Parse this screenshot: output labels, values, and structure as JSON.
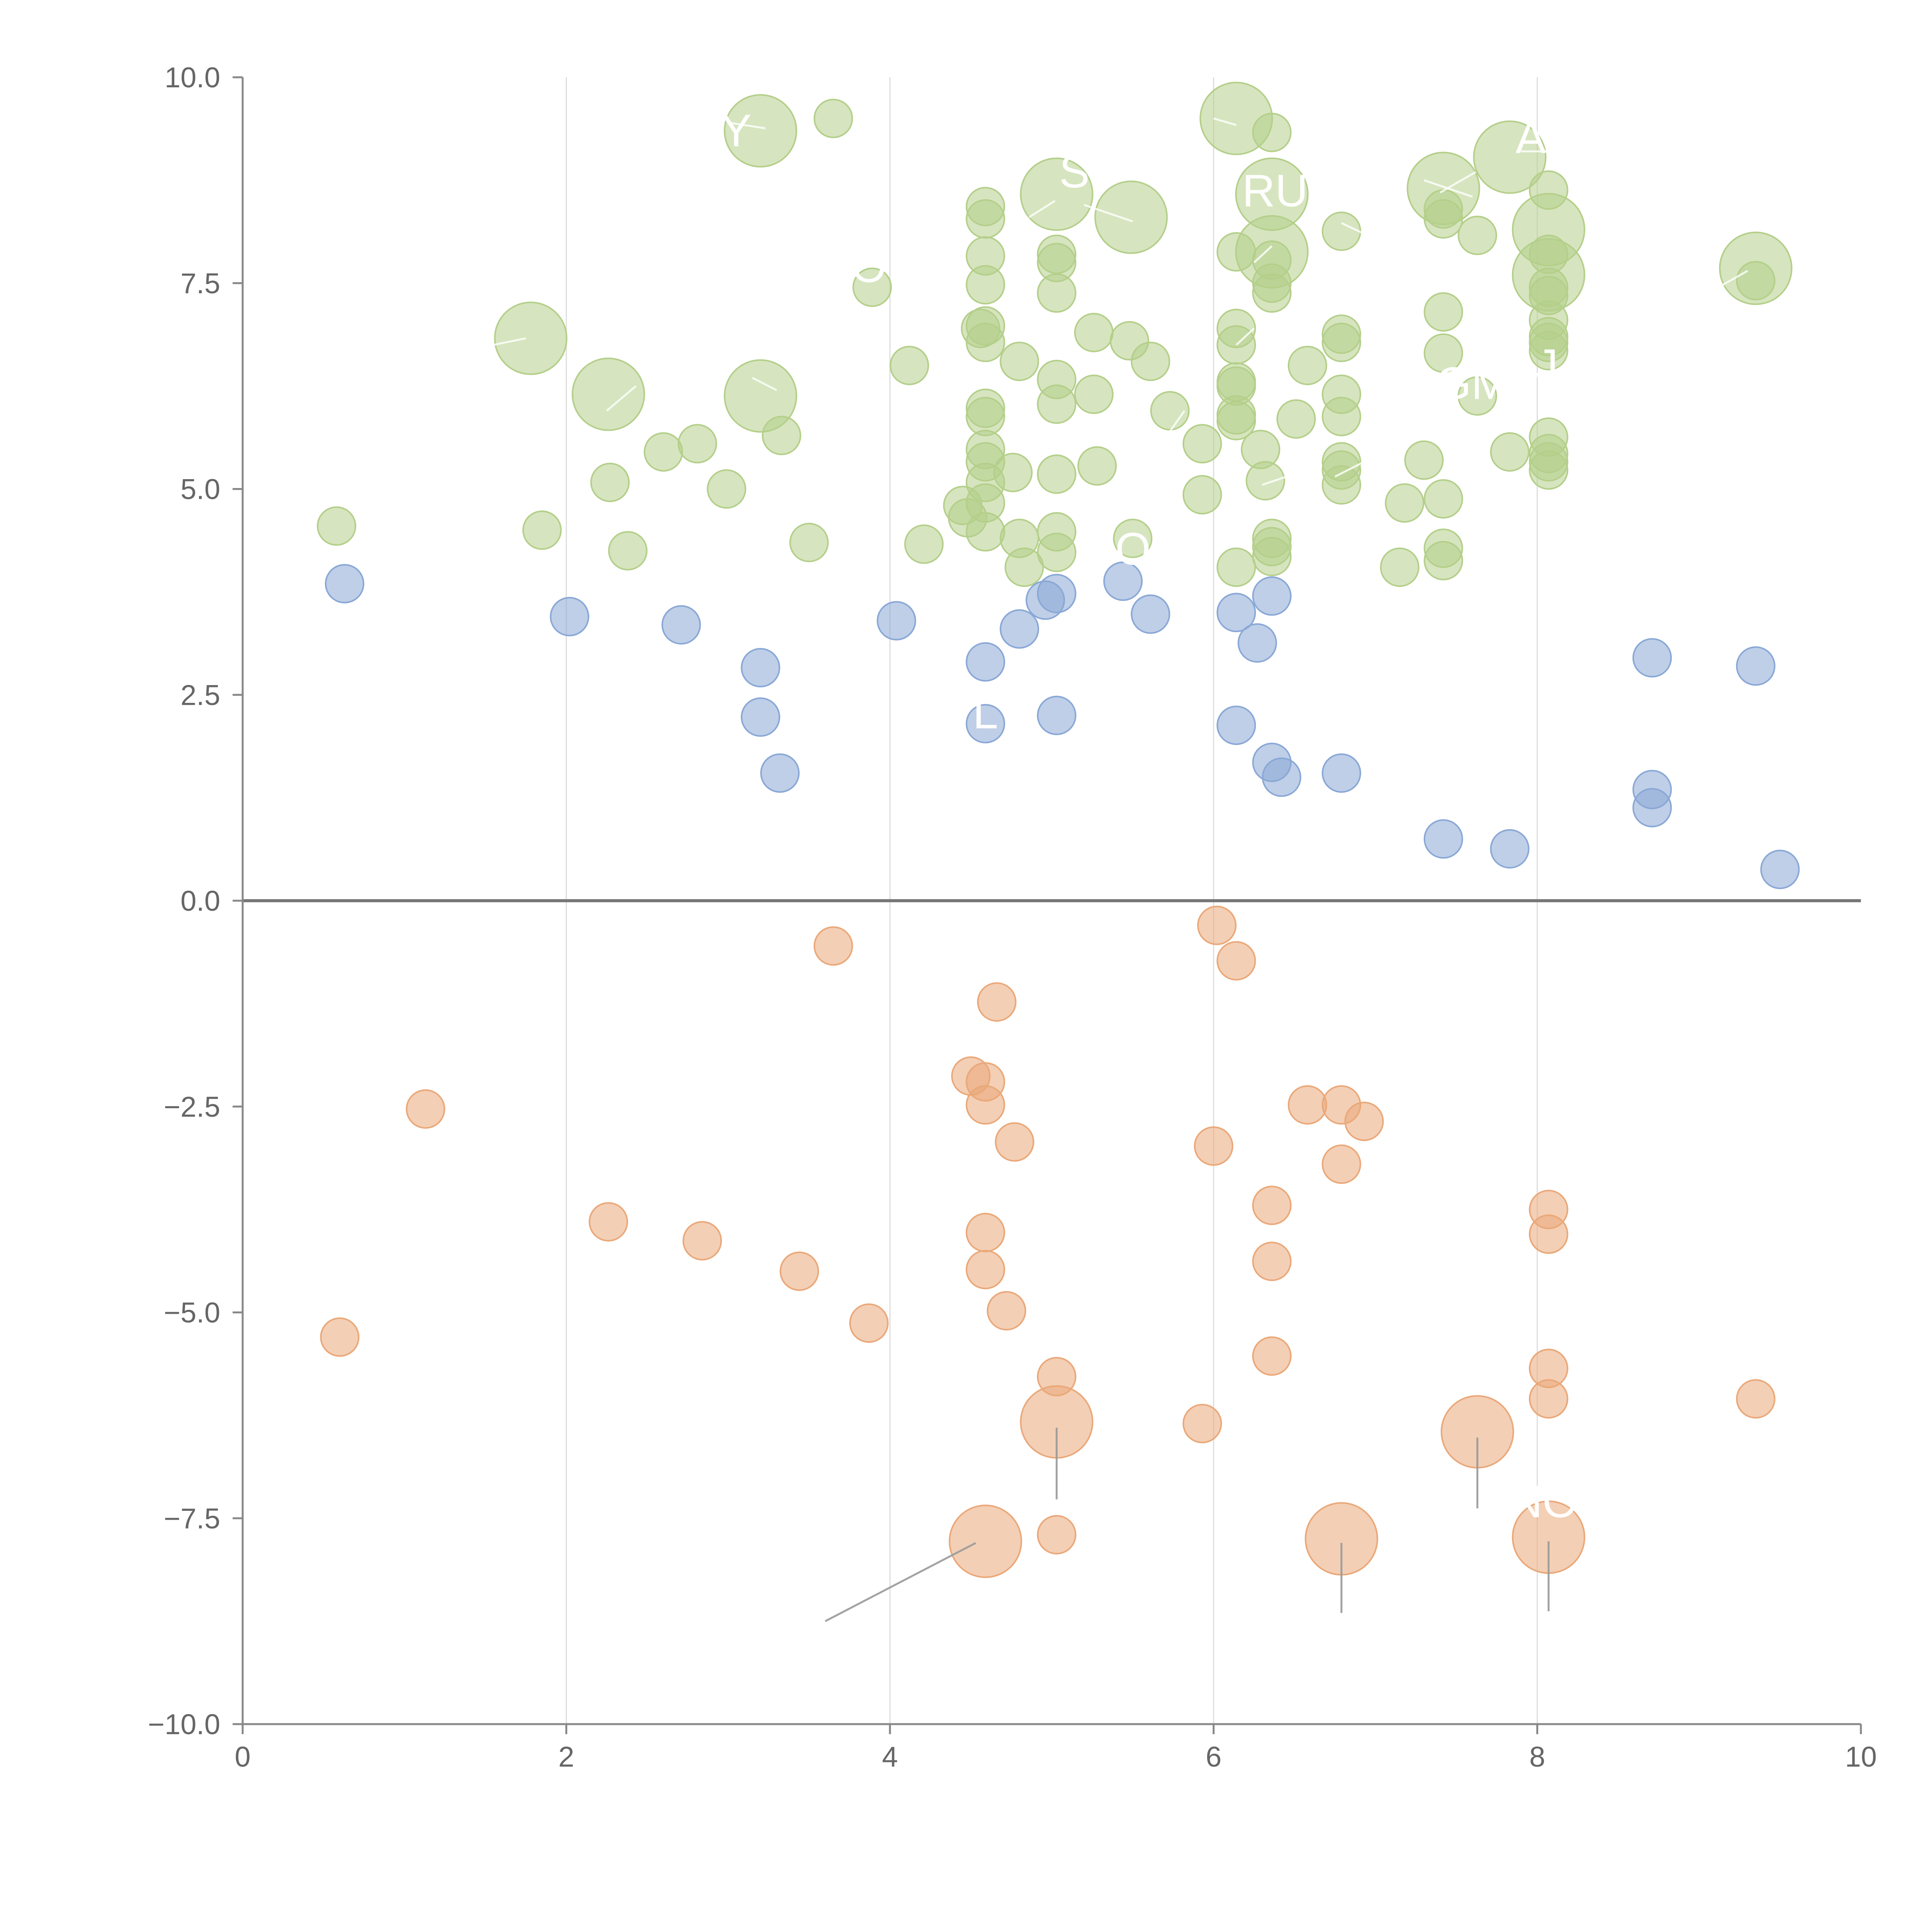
{
  "chart_data": {
    "type": "scatter",
    "title": "",
    "xlabel": "",
    "ylabel": "",
    "xlim": [
      0,
      10
    ],
    "ylim": [
      -10,
      10
    ],
    "x_ticks": [
      "0",
      "2",
      "4",
      "6",
      "8",
      "10"
    ],
    "y_ticks": [
      "10.0",
      "7.5",
      "5.0",
      "2.5",
      "0.0",
      "−2.5",
      "−5.0",
      "−7.5",
      "−10.0"
    ],
    "grid": "vertical lines at x = 2, 4, 6, 8",
    "zero_line": 0,
    "colors": {
      "high": "#b4cf8a",
      "mid": "#8aa8d6",
      "neg": "#eaa879",
      "axis": "#888888",
      "grid": "#dddddd",
      "zero": "#777777",
      "leader": "#999999"
    },
    "series": [
      {
        "name": "high",
        "color": "#b4cf8a",
        "points": [
          [
            0.58,
            4.55,
            1
          ],
          [
            1.85,
            4.5,
            1
          ],
          [
            2.38,
            4.25,
            1
          ],
          [
            2.27,
            5.08,
            1
          ],
          [
            2.6,
            5.45,
            1
          ],
          [
            2.81,
            5.55,
            1
          ],
          [
            2.99,
            5.0,
            1
          ],
          [
            3.33,
            5.65,
            1
          ],
          [
            3.5,
            4.35,
            1
          ],
          [
            3.65,
            9.5,
            1
          ],
          [
            3.89,
            7.45,
            1
          ],
          [
            4.12,
            6.5,
            1
          ],
          [
            4.21,
            4.33,
            1
          ],
          [
            4.48,
            4.65,
            1
          ],
          [
            4.56,
            6.95,
            1
          ],
          [
            4.59,
            8.43,
            1
          ],
          [
            4.59,
            8.28,
            1
          ],
          [
            4.59,
            7.83,
            1
          ],
          [
            4.59,
            7.48,
            1
          ],
          [
            4.59,
            6.98,
            1
          ],
          [
            4.59,
            6.78,
            1
          ],
          [
            4.59,
            5.98,
            1
          ],
          [
            4.59,
            5.88,
            1
          ],
          [
            4.59,
            5.48,
            1
          ],
          [
            4.59,
            5.33,
            1
          ],
          [
            4.59,
            5.08,
            1
          ],
          [
            4.59,
            4.83,
            1
          ],
          [
            4.59,
            4.48,
            1
          ],
          [
            4.45,
            4.8,
            1
          ],
          [
            4.76,
            5.2,
            1
          ],
          [
            4.8,
            6.55,
            1
          ],
          [
            4.8,
            4.4,
            1
          ],
          [
            4.83,
            4.05,
            1
          ],
          [
            5.03,
            7.85,
            1
          ],
          [
            5.03,
            7.75,
            1
          ],
          [
            5.03,
            7.38,
            1
          ],
          [
            5.03,
            6.33,
            1
          ],
          [
            5.03,
            6.03,
            1
          ],
          [
            5.03,
            5.18,
            1
          ],
          [
            5.03,
            4.48,
            1
          ],
          [
            5.03,
            4.23,
            1
          ],
          [
            5.26,
            6.9,
            1
          ],
          [
            5.26,
            6.15,
            1
          ],
          [
            5.28,
            5.28,
            1
          ],
          [
            5.48,
            6.8,
            1
          ],
          [
            5.61,
            6.55,
            1
          ],
          [
            5.5,
            4.4,
            1
          ],
          [
            5.73,
            5.95,
            1
          ],
          [
            5.93,
            5.55,
            1
          ],
          [
            5.93,
            4.93,
            1
          ],
          [
            6.14,
            7.88,
            1
          ],
          [
            6.14,
            6.95,
            1
          ],
          [
            6.14,
            6.75,
            1
          ],
          [
            6.14,
            6.3,
            1
          ],
          [
            6.14,
            6.25,
            1
          ],
          [
            6.14,
            5.9,
            1
          ],
          [
            6.14,
            5.83,
            1
          ],
          [
            6.14,
            4.05,
            1
          ],
          [
            6.29,
            5.48,
            1
          ],
          [
            6.32,
            5.1,
            1
          ],
          [
            6.36,
            9.33,
            1
          ],
          [
            6.36,
            7.78,
            1
          ],
          [
            6.36,
            7.5,
            1
          ],
          [
            6.36,
            7.38,
            1
          ],
          [
            6.36,
            4.4,
            1
          ],
          [
            6.36,
            4.3,
            1
          ],
          [
            6.36,
            4.18,
            1
          ],
          [
            6.51,
            5.85,
            1
          ],
          [
            6.58,
            6.5,
            1
          ],
          [
            6.79,
            8.13,
            1
          ],
          [
            6.79,
            6.88,
            1
          ],
          [
            6.79,
            6.78,
            1
          ],
          [
            6.79,
            6.15,
            1
          ],
          [
            6.79,
            5.88,
            1
          ],
          [
            6.79,
            5.33,
            1
          ],
          [
            6.79,
            5.23,
            1
          ],
          [
            6.79,
            5.05,
            1
          ],
          [
            7.15,
            4.05,
            1
          ],
          [
            7.18,
            4.83,
            1
          ],
          [
            7.3,
            5.35,
            1
          ],
          [
            7.42,
            8.4,
            1
          ],
          [
            7.42,
            8.28,
            1
          ],
          [
            7.42,
            7.15,
            1
          ],
          [
            7.42,
            6.65,
            1
          ],
          [
            7.42,
            4.88,
            1
          ],
          [
            7.42,
            4.28,
            1
          ],
          [
            7.42,
            4.13,
            1
          ],
          [
            7.63,
            8.08,
            1
          ],
          [
            7.63,
            6.13,
            1
          ],
          [
            7.83,
            5.45,
            1
          ],
          [
            8.07,
            8.63,
            1
          ],
          [
            8.07,
            7.85,
            1
          ],
          [
            8.07,
            7.45,
            1
          ],
          [
            8.07,
            7.35,
            1
          ],
          [
            8.07,
            7.05,
            1
          ],
          [
            8.07,
            6.85,
            1
          ],
          [
            8.07,
            6.78,
            1
          ],
          [
            8.07,
            6.68,
            1
          ],
          [
            8.07,
            5.63,
            1
          ],
          [
            8.07,
            5.43,
            1
          ],
          [
            8.07,
            5.33,
            1
          ],
          [
            8.07,
            5.23,
            1
          ],
          [
            9.35,
            7.53,
            1
          ],
          [
            3.2,
            9.35,
            2
          ],
          [
            1.78,
            6.83,
            2
          ],
          [
            2.26,
            6.15,
            2
          ],
          [
            3.2,
            6.13,
            2
          ],
          [
            5.03,
            8.58,
            2
          ],
          [
            5.49,
            8.3,
            2
          ],
          [
            6.14,
            9.5,
            2
          ],
          [
            6.36,
            8.58,
            2
          ],
          [
            6.36,
            7.88,
            2
          ],
          [
            7.42,
            8.65,
            2
          ],
          [
            7.83,
            9.03,
            2
          ],
          [
            8.07,
            8.15,
            2
          ],
          [
            8.07,
            7.6,
            2
          ],
          [
            9.35,
            7.68,
            2
          ]
        ]
      },
      {
        "name": "mid",
        "color": "#8aa8d6",
        "points": [
          [
            0.63,
            3.85,
            1
          ],
          [
            2.02,
            3.45,
            1
          ],
          [
            2.71,
            3.35,
            1
          ],
          [
            3.2,
            2.83,
            1
          ],
          [
            3.2,
            2.23,
            1
          ],
          [
            3.32,
            1.55,
            1
          ],
          [
            4.04,
            3.4,
            1
          ],
          [
            4.59,
            2.9,
            1
          ],
          [
            4.59,
            2.15,
            1
          ],
          [
            4.8,
            3.3,
            1
          ],
          [
            4.96,
            3.65,
            1
          ],
          [
            5.03,
            3.73,
            1
          ],
          [
            5.03,
            2.25,
            1
          ],
          [
            5.44,
            3.88,
            1
          ],
          [
            5.61,
            3.48,
            1
          ],
          [
            6.14,
            3.5,
            1
          ],
          [
            6.14,
            2.13,
            1
          ],
          [
            6.27,
            3.13,
            1
          ],
          [
            6.36,
            3.7,
            1
          ],
          [
            6.36,
            1.68,
            1
          ],
          [
            6.42,
            1.5,
            1
          ],
          [
            6.79,
            1.55,
            1
          ],
          [
            7.42,
            0.75,
            1
          ],
          [
            7.83,
            0.63,
            1
          ],
          [
            8.71,
            2.95,
            1
          ],
          [
            8.71,
            1.35,
            1
          ],
          [
            8.71,
            1.13,
            1
          ],
          [
            9.35,
            2.85,
            1
          ],
          [
            9.5,
            0.38,
            1
          ]
        ]
      },
      {
        "name": "neg",
        "color": "#eaa879",
        "points": [
          [
            0.6,
            -5.3,
            1
          ],
          [
            1.13,
            -2.53,
            1
          ],
          [
            2.26,
            -3.9,
            1
          ],
          [
            2.84,
            -4.13,
            1
          ],
          [
            3.44,
            -4.5,
            1
          ],
          [
            3.65,
            -0.55,
            1
          ],
          [
            3.87,
            -5.13,
            1
          ],
          [
            4.5,
            -2.13,
            1
          ],
          [
            4.59,
            -2.2,
            1
          ],
          [
            4.59,
            -2.48,
            1
          ],
          [
            4.59,
            -4.03,
            1
          ],
          [
            4.59,
            -4.48,
            1
          ],
          [
            4.66,
            -1.23,
            1
          ],
          [
            4.72,
            -4.98,
            1
          ],
          [
            4.77,
            -2.93,
            1
          ],
          [
            5.03,
            -5.78,
            1
          ],
          [
            5.03,
            -7.7,
            1
          ],
          [
            5.93,
            -6.35,
            1
          ],
          [
            6.0,
            -2.98,
            1
          ],
          [
            6.02,
            -0.3,
            1
          ],
          [
            6.14,
            -0.73,
            1
          ],
          [
            6.36,
            -3.7,
            1
          ],
          [
            6.36,
            -4.38,
            1
          ],
          [
            6.36,
            -5.53,
            1
          ],
          [
            6.58,
            -2.48,
            1
          ],
          [
            6.79,
            -2.48,
            1
          ],
          [
            6.79,
            -3.2,
            1
          ],
          [
            6.93,
            -2.68,
            1
          ],
          [
            8.07,
            -3.75,
            1
          ],
          [
            8.07,
            -4.05,
            1
          ],
          [
            8.07,
            -5.68,
            1
          ],
          [
            8.07,
            -6.05,
            1
          ],
          [
            9.35,
            -6.05,
            1
          ],
          [
            4.59,
            -7.78,
            2
          ],
          [
            5.03,
            -6.33,
            2
          ],
          [
            6.79,
            -7.75,
            2
          ],
          [
            7.63,
            -6.45,
            2
          ],
          [
            8.07,
            -7.73,
            2
          ]
        ]
      }
    ],
    "labels": [
      {
        "text": "Y",
        "x": 3.05,
        "y": 9.35,
        "fx": 3.05,
        "fy": 9.45,
        "tx": 3.15,
        "ty": 9.35
      },
      {
        "text": "S",
        "x": 5.14,
        "y": 8.85,
        "fx": 5.0,
        "fy": 8.55,
        "tx": 4.86,
        "ty": 8.3
      },
      {
        "text": "RU",
        "x": 6.38,
        "y": 8.62
      },
      {
        "text": "A",
        "x": 7.96,
        "y": 9.27
      },
      {
        "text": "O",
        "x": 3.87,
        "y": 7.7
      },
      {
        "text": "GM",
        "x": 7.6,
        "y": 6.28
      },
      {
        "text": "LJ",
        "x": 7.98,
        "y": 6.5
      },
      {
        "text": "DO",
        "x": 5.4,
        "y": 4.27,
        "fx": 5.2,
        "fy": 4.1,
        "tx": 4.85,
        "ty": 3.9
      },
      {
        "text": "L",
        "x": 4.59,
        "y": 2.28
      },
      {
        "text": "NO",
        "x": 8.04,
        "y": -7.3
      }
    ],
    "leader_lines": [
      [
        3.6,
        -8.75,
        4.53,
        -7.8
      ],
      [
        5.03,
        -7.27,
        5.03,
        -6.4
      ],
      [
        6.79,
        -8.65,
        6.79,
        -7.8
      ],
      [
        7.63,
        -7.38,
        7.63,
        -6.52
      ],
      [
        8.07,
        -8.63,
        8.07,
        -7.78
      ],
      [
        3.0,
        9.45,
        3.23,
        9.38
      ],
      [
        5.02,
        8.5,
        4.86,
        8.3
      ],
      [
        5.5,
        8.25,
        5.2,
        8.45
      ],
      [
        6.0,
        9.5,
        6.14,
        9.42
      ],
      [
        6.25,
        7.75,
        6.36,
        7.95
      ],
      [
        6.14,
        6.75,
        6.25,
        6.95
      ],
      [
        5.73,
        5.7,
        5.82,
        5.95
      ],
      [
        6.3,
        5.05,
        6.45,
        5.15
      ],
      [
        2.25,
        5.95,
        2.43,
        6.25
      ],
      [
        3.15,
        6.35,
        3.3,
        6.2
      ],
      [
        1.55,
        6.75,
        1.75,
        6.83
      ],
      [
        7.3,
        8.75,
        7.6,
        8.55
      ],
      [
        7.9,
        9.1,
        8.1,
        9.1
      ],
      [
        7.4,
        8.6,
        7.62,
        8.85
      ],
      [
        9.12,
        7.45,
        9.3,
        7.65
      ],
      [
        6.75,
        5.15,
        6.95,
        5.35
      ],
      [
        6.79,
        8.23,
        6.95,
        8.08
      ]
    ]
  }
}
